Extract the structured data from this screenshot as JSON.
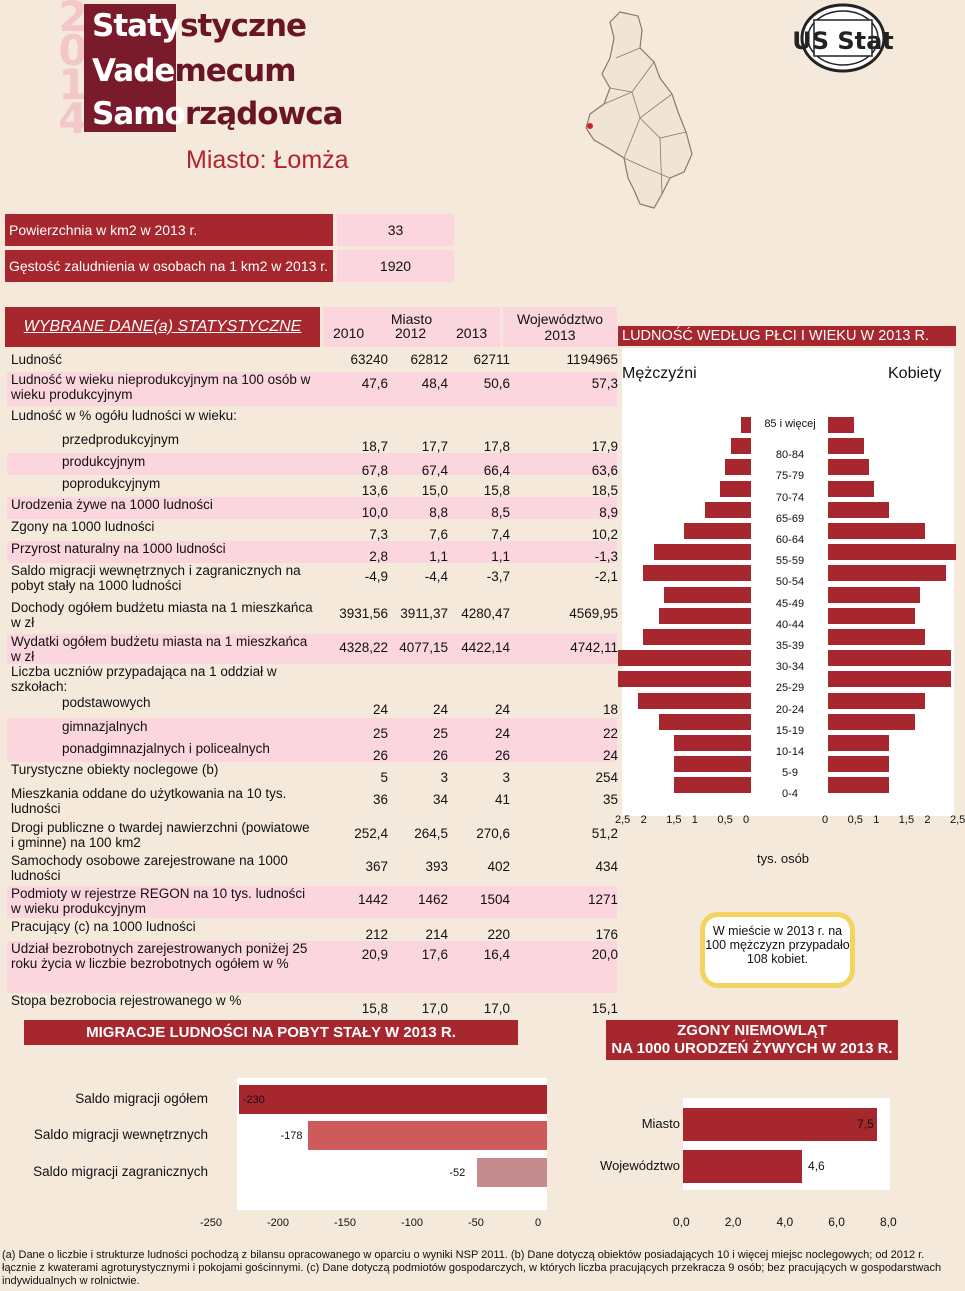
{
  "logo": {
    "year_digits": [
      "2",
      "0",
      "1",
      "4"
    ],
    "words": [
      {
        "part1": "Staty",
        "part2": "styczne"
      },
      {
        "part1": "Vade",
        "part2": "mecum"
      },
      {
        "part1": "Samo",
        "part2": "rządowca"
      }
    ],
    "ustat": "US Stat"
  },
  "city_title": "Miasto: Łomża",
  "area_label": "Powierzchnia w km2 w 2013 r.",
  "area_value": "33",
  "density_label": "Gęstość zaludnienia w osobach na 1 km2 w 2013 r.",
  "density_value": "1920",
  "table": {
    "title": "WYBRANE DANE(a) STATYSTYCZNE",
    "miasto_label": "Miasto",
    "woj_label": "Województwo",
    "years": [
      "2010",
      "2012",
      "2013",
      "2013"
    ],
    "rows": [
      {
        "label": "Ludność",
        "values": [
          "63240",
          "62812",
          "62711",
          "1194965"
        ]
      },
      {
        "label": "Ludność w wieku nieprodukcyjnym na 100 osób w wieku produkcyjnym",
        "values": [
          "47,6",
          "48,4",
          "50,6",
          "57,3"
        ]
      },
      {
        "label": "Ludność w % ogółu ludności w wieku:",
        "values": [
          "",
          "",
          "",
          ""
        ]
      },
      {
        "label": "przedprodukcyjnym",
        "values": [
          "18,7",
          "17,7",
          "17,8",
          "17,9"
        ]
      },
      {
        "label": "produkcyjnym",
        "values": [
          "67,8",
          "67,4",
          "66,4",
          "63,6"
        ]
      },
      {
        "label": "poprodukcyjnym",
        "values": [
          "13,6",
          "15,0",
          "15,8",
          "18,5"
        ]
      },
      {
        "label": "Urodzenia żywe na 1000 ludności",
        "values": [
          "10,0",
          "8,8",
          "8,5",
          "8,9"
        ]
      },
      {
        "label": "Zgony na 1000 ludności",
        "values": [
          "7,3",
          "7,6",
          "7,4",
          "10,2"
        ]
      },
      {
        "label": "Przyrost naturalny na 1000 ludności",
        "values": [
          "2,8",
          "1,1",
          "1,1",
          "-1,3"
        ]
      },
      {
        "label": "Saldo migracji wewnętrznych i zagranicznych na pobyt stały na 1000 ludności",
        "values": [
          "-4,9",
          "-4,4",
          "-3,7",
          "-2,1"
        ]
      },
      {
        "label": "Dochody ogółem budżetu miasta na 1 mieszkańca w zł",
        "values": [
          "3931,56",
          "3911,37",
          "4280,47",
          "4569,95"
        ]
      },
      {
        "label": "Wydatki ogółem budżetu miasta na 1 mieszkańca w zł",
        "values": [
          "4328,22",
          "4077,15",
          "4422,14",
          "4742,11"
        ]
      },
      {
        "label": "Liczba uczniów przypadająca na 1 oddział w szkołach:",
        "values": [
          "",
          "",
          "",
          ""
        ]
      },
      {
        "label": "podstawowych",
        "values": [
          "24",
          "24",
          "24",
          "18"
        ]
      },
      {
        "label": "gimnazjalnych",
        "values": [
          "25",
          "25",
          "24",
          "22"
        ]
      },
      {
        "label": "ponadgimnazjalnych i policealnych",
        "values": [
          "26",
          "26",
          "26",
          "24"
        ]
      },
      {
        "label": "Turystyczne obiekty noclegowe (b)",
        "values": [
          "5",
          "3",
          "3",
          "254"
        ]
      },
      {
        "label": "Mieszkania oddane do użytkowania na 10 tys. ludności",
        "values": [
          "36",
          "34",
          "41",
          "35"
        ]
      },
      {
        "label": "Drogi publiczne o twardej nawierzchni (powiatowe i gminne) na 100 km2",
        "values": [
          "252,4",
          "264,5",
          "270,6",
          "51,2"
        ]
      },
      {
        "label": "Samochody osobowe zarejestrowane na 1000 ludności",
        "values": [
          "367",
          "393",
          "402",
          "434"
        ]
      },
      {
        "label": "Podmioty w rejestrze REGON na 10 tys. ludności w wieku produkcyjnym",
        "values": [
          "1442",
          "1462",
          "1504",
          "1271"
        ]
      },
      {
        "label": "Pracujący (c) na 1000 ludności",
        "values": [
          "212",
          "214",
          "220",
          "176"
        ]
      },
      {
        "label": "Udział bezrobotnych zarejestrowanych poniżej 25 roku życia w liczbie bezrobotnych ogółem w %",
        "values": [
          "20,9",
          "17,6",
          "16,4",
          "20,0"
        ]
      },
      {
        "label": "Stopa bezrobocia rejestrowanego w %",
        "values": [
          "15,8",
          "17,0",
          "17,0",
          "15,1"
        ]
      }
    ]
  },
  "pyramid": {
    "title": "LUDNOŚĆ WEDŁUG PŁCI I WIEKU W 2013 R.",
    "male_label": "Mężczyźni",
    "female_label": "Kobiety",
    "unit_label": "tys. osób",
    "x_ticks_left": [
      "2,5",
      "2",
      "1,5",
      "1",
      "0,5",
      "0"
    ],
    "x_ticks_right": [
      "0",
      "0,5",
      "1",
      "1,5",
      "2",
      "2,5"
    ],
    "note": "W mieście w 2013 r. na 100 mężczyzn przypadało 108 kobiet.",
    "colors": {
      "bar": "#a6272d"
    }
  },
  "chart_data": [
    {
      "type": "bar",
      "title": "LUDNOŚĆ WEDŁUG PŁCI I WIEKU W 2013 R.",
      "categories": [
        "85 i więcej",
        "80-84",
        "75-79",
        "70-74",
        "65-69",
        "60-64",
        "55-59",
        "50-54",
        "45-49",
        "40-44",
        "35-39",
        "30-34",
        "25-29",
        "20-24",
        "15-19",
        "10-14",
        "5-9",
        "0-4"
      ],
      "series": [
        {
          "name": "Mężczyźni",
          "values": [
            0.2,
            0.4,
            0.5,
            0.6,
            0.9,
            1.3,
            1.9,
            2.1,
            1.7,
            1.8,
            2.1,
            2.6,
            2.6,
            2.2,
            1.8,
            1.5,
            1.5,
            1.5
          ]
        },
        {
          "name": "Kobiety",
          "values": [
            0.5,
            0.7,
            0.8,
            0.9,
            1.2,
            1.9,
            2.5,
            2.3,
            1.8,
            1.7,
            1.9,
            2.4,
            2.4,
            1.9,
            1.7,
            1.2,
            1.2,
            1.2
          ]
        }
      ],
      "xlabel": "tys. osób",
      "xlim": [
        0,
        2.5
      ]
    },
    {
      "type": "bar",
      "title": "MIGRACJE LUDNOŚCI NA POBYT STAŁY W 2013 R.",
      "categories": [
        "Saldo migracji ogółem",
        "Saldo migracji wewnętrznych",
        "Saldo migracji zagranicznych"
      ],
      "values": [
        -230,
        -178,
        -52
      ],
      "x_ticks": [
        "-250",
        "-200",
        "-150",
        "-100",
        "-50",
        "0"
      ],
      "xlim": [
        -250,
        0
      ],
      "colors": [
        "#a6272d",
        "#cf5a5c",
        "#c48c8f"
      ]
    },
    {
      "type": "bar",
      "title": "ZGONY NIEMOWLĄT NA 1000 URODZEŃ ŻYWYCH W 2013 R.",
      "categories": [
        "Miasto",
        "Województwo"
      ],
      "values": [
        7.5,
        4.6
      ],
      "value_labels": [
        "7,5",
        "4,6"
      ],
      "x_ticks": [
        "0,0",
        "2,0",
        "4,0",
        "6,0",
        "8,0"
      ],
      "xlim": [
        0,
        8
      ],
      "colors": [
        "#a6272d"
      ]
    }
  ],
  "migration": {
    "title": "MIGRACJE LUDNOŚCI NA POBYT STAŁY W 2013 R."
  },
  "zgony": {
    "title1": "ZGONY NIEMOWLĄT",
    "title2": "NA 1000 URODZEŃ ŻYWYCH W 2013 R."
  },
  "footnote": "(a) Dane o liczbie i strukturze ludności pochodzą z bilansu opracowanego w oparciu o wyniki NSP 2011. (b) Dane dotyczą obiektów posiadających 10 i więcej miejsc noclegowych; od 2012 r. łącznie z kwaterami agroturystycznymi i pokojami gościnnymi. (c) Dane dotyczą podmiotów gospodarczych, w których liczba pracujących przekracza 9 osób; bez pracujących w gospodarstwach indywidualnych w rolnictwie."
}
